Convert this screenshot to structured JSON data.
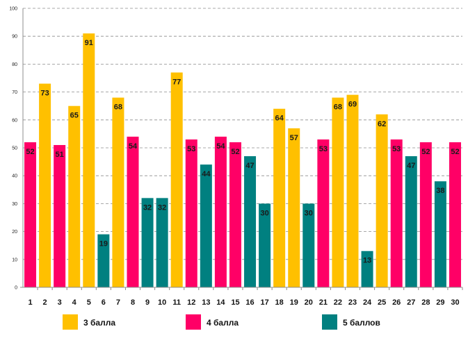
{
  "chart_data": {
    "type": "bar",
    "title": "",
    "xlabel": "",
    "ylabel": "",
    "ylim": [
      0,
      100
    ],
    "yticks": [
      0,
      10,
      20,
      30,
      40,
      50,
      60,
      70,
      80,
      90,
      100
    ],
    "grid": true,
    "legend_position": "bottom",
    "categories": [
      "1",
      "2",
      "3",
      "4",
      "5",
      "6",
      "7",
      "8",
      "9",
      "10",
      "11",
      "12",
      "13",
      "14",
      "15",
      "16",
      "17",
      "18",
      "19",
      "20",
      "21",
      "22",
      "23",
      "24",
      "25",
      "26",
      "27",
      "28",
      "29",
      "30"
    ],
    "values": [
      52,
      73,
      51,
      65,
      91,
      19,
      68,
      54,
      32,
      32,
      77,
      53,
      44,
      54,
      52,
      47,
      30,
      64,
      57,
      30,
      53,
      68,
      69,
      13,
      62,
      53,
      47,
      52,
      38,
      52
    ],
    "groups": [
      "4",
      "3",
      "4",
      "3",
      "3",
      "5",
      "3",
      "4",
      "5",
      "5",
      "3",
      "4",
      "5",
      "4",
      "4",
      "5",
      "5",
      "3",
      "3",
      "5",
      "4",
      "3",
      "3",
      "5",
      "3",
      "4",
      "5",
      "4",
      "5",
      "4"
    ],
    "legend": [
      {
        "key": "3",
        "label": "3 балла",
        "color": "#FFC000"
      },
      {
        "key": "4",
        "label": "4 балла",
        "color": "#FF0066"
      },
      {
        "key": "5",
        "label": "5 баллов",
        "color": "#008080"
      }
    ]
  }
}
